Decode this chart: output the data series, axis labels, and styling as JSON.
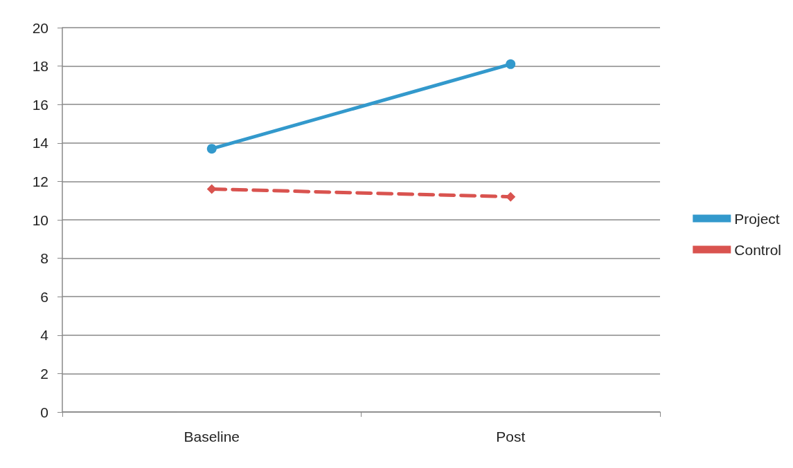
{
  "chart_data": {
    "type": "line",
    "categories": [
      "Baseline",
      "Post"
    ],
    "series": [
      {
        "name": "Project",
        "color": "#3399cc",
        "values": [
          13.7,
          18.1
        ],
        "marker": "circle",
        "line_style": "solid"
      },
      {
        "name": "Control",
        "color": "#d9534f",
        "values": [
          11.6,
          11.2
        ],
        "marker": "diamond",
        "line_style": "dashed"
      }
    ],
    "ylim": [
      0,
      20
    ],
    "yticks": [
      0,
      2,
      4,
      6,
      8,
      10,
      12,
      14,
      16,
      18,
      20
    ],
    "grid": "y",
    "legend": "right"
  }
}
